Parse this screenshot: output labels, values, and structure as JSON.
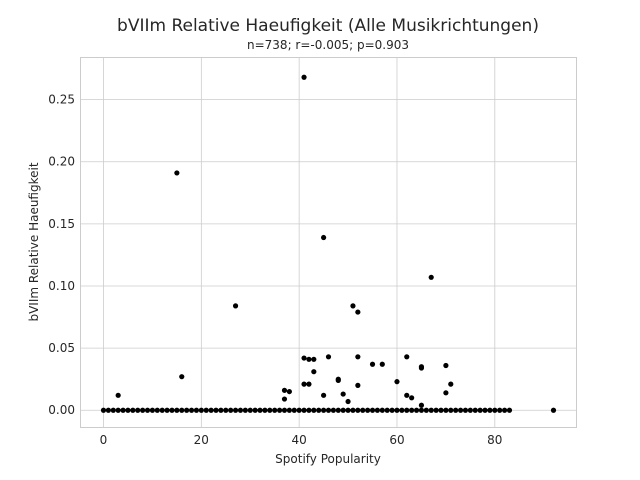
{
  "chart_data": {
    "type": "scatter",
    "title": "bVIIm Relative Haeufigkeit (Alle Musikrichtungen)",
    "subtitle": "n=738; r=-0.005; p=0.903",
    "xlabel": "Spotify Popularity",
    "ylabel": "bVIIm Relative Haeufigkeit",
    "xlim": [
      -4.6,
      96.6
    ],
    "ylim": [
      -0.0135,
      0.2835
    ],
    "xticks": [
      0,
      20,
      40,
      60,
      80
    ],
    "yticks": [
      0.0,
      0.05,
      0.1,
      0.15,
      0.2,
      0.25
    ],
    "ytick_labels": [
      "0.00",
      "0.05",
      "0.10",
      "0.15",
      "0.20",
      "0.25"
    ],
    "grid": true,
    "marker_color": "#000000",
    "zero_line": {
      "x_start": 0,
      "x_end": 83,
      "y": 0.0
    },
    "points": [
      {
        "x": 92,
        "y": 0.0
      },
      {
        "x": 3,
        "y": 0.012
      },
      {
        "x": 15,
        "y": 0.191
      },
      {
        "x": 16,
        "y": 0.027
      },
      {
        "x": 27,
        "y": 0.084
      },
      {
        "x": 37,
        "y": 0.016
      },
      {
        "x": 37,
        "y": 0.009
      },
      {
        "x": 38,
        "y": 0.015
      },
      {
        "x": 41,
        "y": 0.268
      },
      {
        "x": 41,
        "y": 0.042
      },
      {
        "x": 41,
        "y": 0.021
      },
      {
        "x": 42,
        "y": 0.041
      },
      {
        "x": 42,
        "y": 0.021
      },
      {
        "x": 43,
        "y": 0.041
      },
      {
        "x": 43,
        "y": 0.031
      },
      {
        "x": 45,
        "y": 0.139
      },
      {
        "x": 45,
        "y": 0.012
      },
      {
        "x": 46,
        "y": 0.043
      },
      {
        "x": 48,
        "y": 0.025
      },
      {
        "x": 48,
        "y": 0.024
      },
      {
        "x": 49,
        "y": 0.013
      },
      {
        "x": 50,
        "y": 0.007
      },
      {
        "x": 51,
        "y": 0.084
      },
      {
        "x": 52,
        "y": 0.079
      },
      {
        "x": 52,
        "y": 0.043
      },
      {
        "x": 52,
        "y": 0.02
      },
      {
        "x": 55,
        "y": 0.037
      },
      {
        "x": 57,
        "y": 0.037
      },
      {
        "x": 60,
        "y": 0.023
      },
      {
        "x": 62,
        "y": 0.043
      },
      {
        "x": 62,
        "y": 0.012
      },
      {
        "x": 63,
        "y": 0.01
      },
      {
        "x": 65,
        "y": 0.035
      },
      {
        "x": 65,
        "y": 0.034
      },
      {
        "x": 65,
        "y": 0.004
      },
      {
        "x": 67,
        "y": 0.107
      },
      {
        "x": 70,
        "y": 0.036
      },
      {
        "x": 70,
        "y": 0.014
      },
      {
        "x": 71,
        "y": 0.021
      }
    ]
  }
}
